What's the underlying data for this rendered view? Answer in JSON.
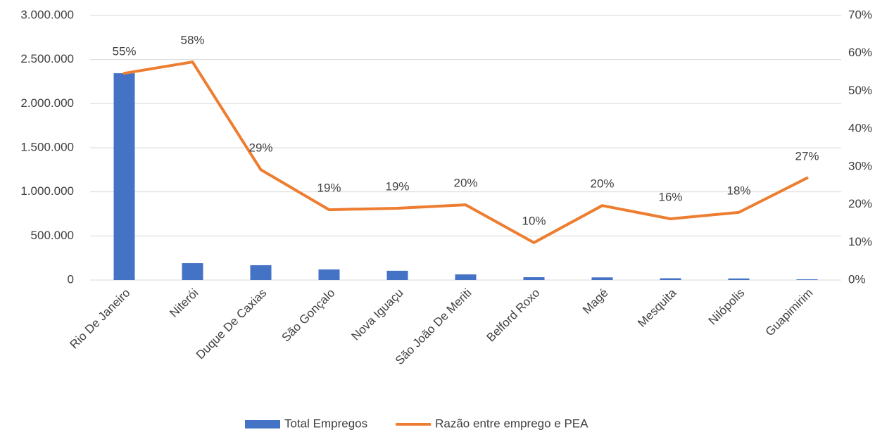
{
  "chart_data": {
    "type": "bar-line",
    "categories": [
      "Rio De Janeiro",
      "Niterói",
      "Duque De Caxias",
      "São Gonçalo",
      "Nova Iguaçu",
      "São João De Meriti",
      "Belford Roxo",
      "Magé",
      "Mesquita",
      "Nilópolis",
      "Guapimirim"
    ],
    "series": [
      {
        "name": "Total Empregos",
        "color": "#4472c4",
        "type": "bar",
        "axis": "y",
        "values": [
          2345000,
          191000,
          168000,
          120000,
          105000,
          64000,
          32000,
          30000,
          20000,
          18000,
          8000
        ]
      },
      {
        "name": "Razão entre emprego e PEA",
        "color": "#ed7d31",
        "type": "line",
        "axis": "y2",
        "values": [
          54.7,
          57.7,
          29.2,
          18.6,
          19.0,
          19.9,
          9.9,
          19.7,
          16.2,
          17.9,
          27.0
        ],
        "value_labels": [
          "55%",
          "58%",
          "29%",
          "19%",
          "19%",
          "20%",
          "10%",
          "20%",
          "16%",
          "18%",
          "27%"
        ]
      }
    ],
    "ylim": [
      0,
      3000000
    ],
    "yticks": [
      0,
      {
        "value": 500000,
        "label": "500.000"
      },
      {
        "value": 1000000,
        "label": "1.000.000"
      },
      {
        "value": 1500000,
        "label": "1.500.000"
      },
      {
        "value": 2000000,
        "label": "2.000.000"
      },
      {
        "value": 2500000,
        "label": "2.500.000"
      },
      {
        "value": 3000000,
        "label": "3.000.000"
      }
    ],
    "y2lim": [
      0,
      70
    ],
    "y2ticks": [
      {
        "value": 0,
        "label": "0%"
      },
      {
        "value": 10,
        "label": "10%"
      },
      {
        "value": 20,
        "label": "20%"
      },
      {
        "value": 30,
        "label": "30%"
      },
      {
        "value": 40,
        "label": "40%"
      },
      {
        "value": 50,
        "label": "50%"
      },
      {
        "value": 60,
        "label": "60%"
      },
      {
        "value": 70,
        "label": "70%"
      }
    ],
    "grid": true,
    "legend": "bottom"
  }
}
